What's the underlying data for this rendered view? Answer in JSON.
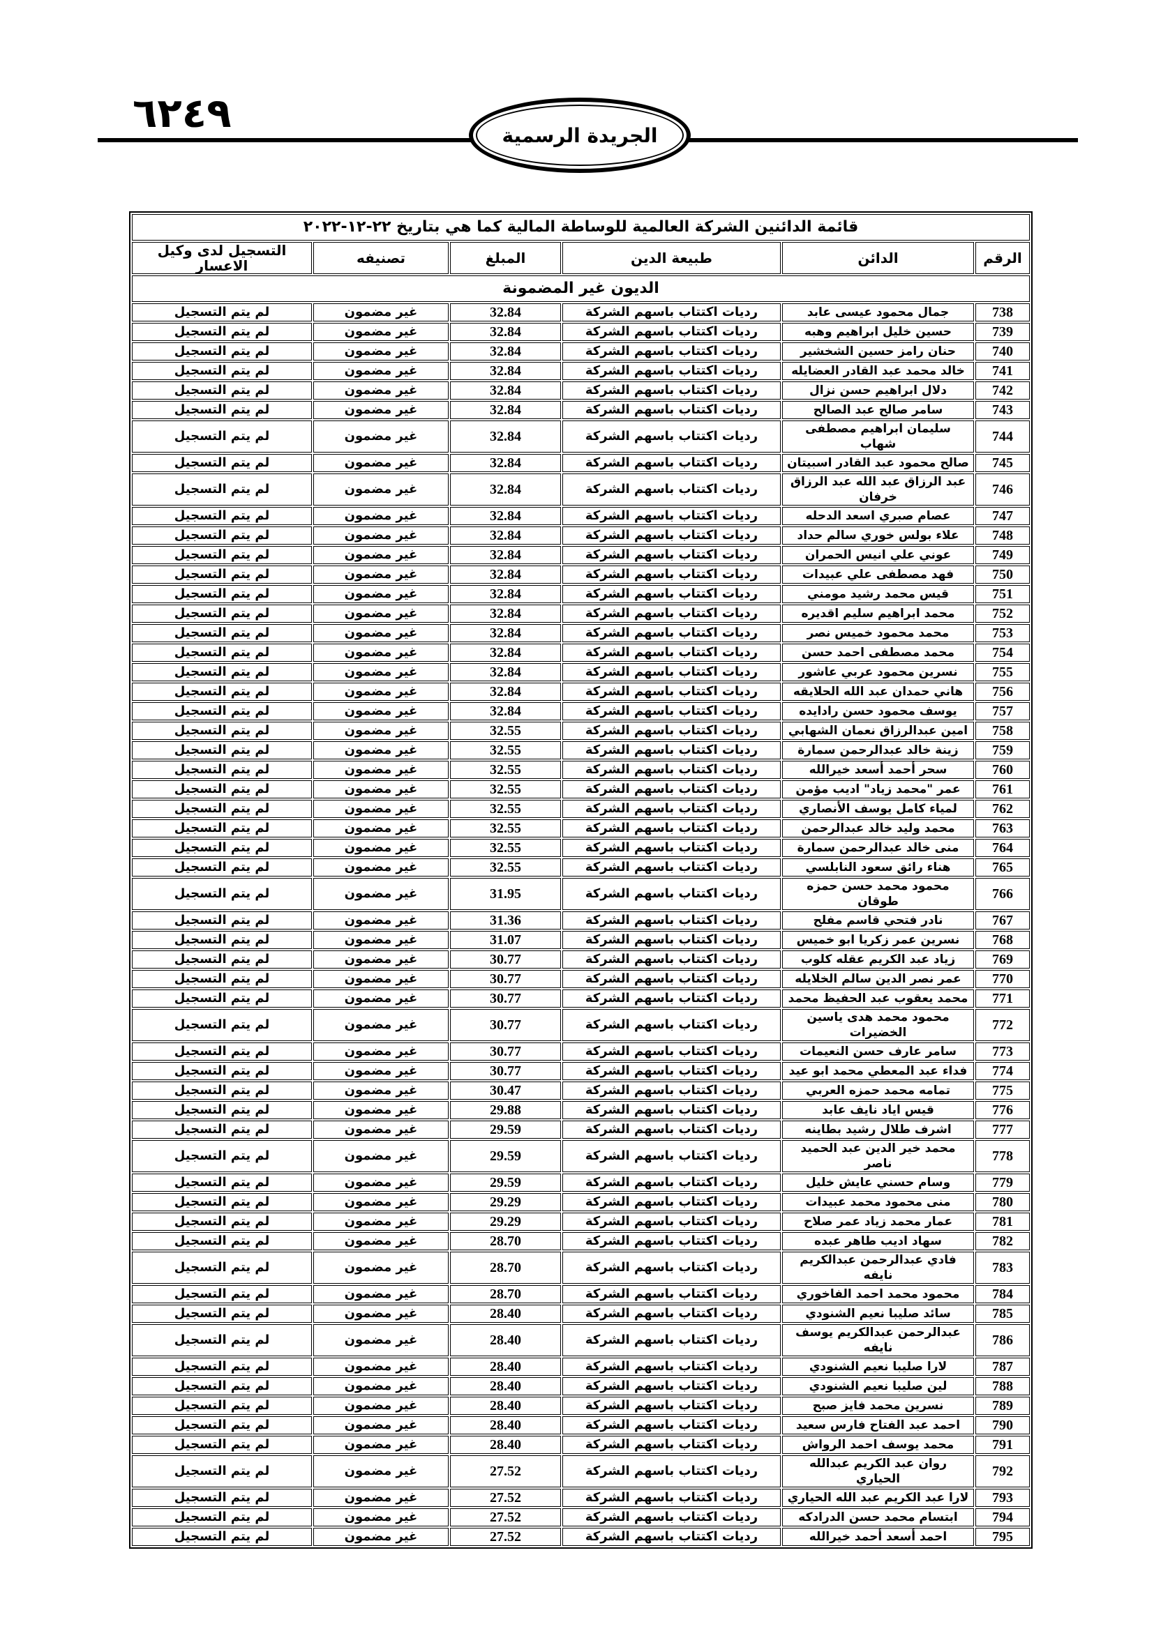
{
  "header": {
    "page_number": "٦٢٤٩",
    "gazette_title": "الجريدة الرسمية"
  },
  "table": {
    "title": "قائمة الدائنين الشركة العالمية للوساطة المالية  كما هي بتاريخ ٢٢-١٢-٢٠٢٢",
    "columns": [
      "الرقم",
      "الدائن",
      "طبيعة الدين",
      "المبلغ",
      "تصنيفه",
      "التسجيل لدى وكيل الاعسار"
    ],
    "section": "الديون غير المضمونة",
    "rows": [
      [
        "738",
        "جمال محمود عيسى عابد",
        "رديات اكتتاب باسهم الشركة",
        "32.84",
        "غير مضمون",
        "لم يتم التسجيل"
      ],
      [
        "739",
        "حسين خليل ابراهيم وهبه",
        "رديات اكتتاب باسهم الشركة",
        "32.84",
        "غير مضمون",
        "لم يتم التسجيل"
      ],
      [
        "740",
        "حنان رامز حسين الشخشير",
        "رديات اكتتاب باسهم الشركة",
        "32.84",
        "غير مضمون",
        "لم يتم التسجيل"
      ],
      [
        "741",
        "خالد محمد عبد القادر العضايله",
        "رديات اكتتاب باسهم الشركة",
        "32.84",
        "غير مضمون",
        "لم يتم التسجيل"
      ],
      [
        "742",
        "دلال ابراهيم حسن نزال",
        "رديات اكتتاب باسهم الشركة",
        "32.84",
        "غير مضمون",
        "لم يتم التسجيل"
      ],
      [
        "743",
        "سامر صالح عبد الصالح",
        "رديات اكتتاب باسهم الشركة",
        "32.84",
        "غير مضمون",
        "لم يتم التسجيل"
      ],
      [
        "744",
        "سليمان ابراهيم مصطفى شهاب",
        "رديات اكتتاب باسهم الشركة",
        "32.84",
        "غير مضمون",
        "لم يتم التسجيل"
      ],
      [
        "745",
        "صالح محمود عبد القادر اسبيتان",
        "رديات اكتتاب باسهم الشركة",
        "32.84",
        "غير مضمون",
        "لم يتم التسجيل"
      ],
      [
        "746",
        "عبد الرزاق عبد الله عبد الرزاق خرفان",
        "رديات اكتتاب باسهم الشركة",
        "32.84",
        "غير مضمون",
        "لم يتم التسجيل"
      ],
      [
        "747",
        "عصام صبري اسعد الدحله",
        "رديات اكتتاب باسهم الشركة",
        "32.84",
        "غير مضمون",
        "لم يتم التسجيل"
      ],
      [
        "748",
        "علاء بولس خوري سالم حداد",
        "رديات اكتتاب باسهم الشركة",
        "32.84",
        "غير مضمون",
        "لم يتم التسجيل"
      ],
      [
        "749",
        "عوني علي انيس الحمران",
        "رديات اكتتاب باسهم الشركة",
        "32.84",
        "غير مضمون",
        "لم يتم التسجيل"
      ],
      [
        "750",
        "فهد مصطفى علي عبيدات",
        "رديات اكتتاب باسهم الشركة",
        "32.84",
        "غير مضمون",
        "لم يتم التسجيل"
      ],
      [
        "751",
        "قيس محمد رشيد مومني",
        "رديات اكتتاب باسهم الشركة",
        "32.84",
        "غير مضمون",
        "لم يتم التسجيل"
      ],
      [
        "752",
        "محمد ابراهيم سليم اقديره",
        "رديات اكتتاب باسهم الشركة",
        "32.84",
        "غير مضمون",
        "لم يتم التسجيل"
      ],
      [
        "753",
        "محمد محمود خميس نصر",
        "رديات اكتتاب باسهم الشركة",
        "32.84",
        "غير مضمون",
        "لم يتم التسجيل"
      ],
      [
        "754",
        "محمد مصطفى احمد حسن",
        "رديات اكتتاب باسهم الشركة",
        "32.84",
        "غير مضمون",
        "لم يتم التسجيل"
      ],
      [
        "755",
        "نسرين محمود عربي عاشور",
        "رديات اكتتاب باسهم الشركة",
        "32.84",
        "غير مضمون",
        "لم يتم التسجيل"
      ],
      [
        "756",
        "هاني حمدان عبد الله الحلايقه",
        "رديات اكتتاب باسهم الشركة",
        "32.84",
        "غير مضمون",
        "لم يتم التسجيل"
      ],
      [
        "757",
        "يوسف محمود حسن رادايده",
        "رديات اكتتاب باسهم الشركة",
        "32.84",
        "غير مضمون",
        "لم يتم التسجيل"
      ],
      [
        "758",
        "امين عبدالرزاق نعمان الشهابي",
        "رديات اكتتاب باسهم الشركة",
        "32.55",
        "غير مضمون",
        "لم يتم التسجيل"
      ],
      [
        "759",
        "زينة خالد عبدالرحمن سمارة",
        "رديات اكتتاب باسهم الشركة",
        "32.55",
        "غير مضمون",
        "لم يتم التسجيل"
      ],
      [
        "760",
        "سحر أحمد أسعد خيرالله",
        "رديات اكتتاب باسهم الشركة",
        "32.55",
        "غير مضمون",
        "لم يتم التسجيل"
      ],
      [
        "761",
        "عمر \"محمد زياد\" اديب مؤمن",
        "رديات اكتتاب باسهم الشركة",
        "32.55",
        "غير مضمون",
        "لم يتم التسجيل"
      ],
      [
        "762",
        "لمياء كامل يوسف الأنصاري",
        "رديات اكتتاب باسهم الشركة",
        "32.55",
        "غير مضمون",
        "لم يتم التسجيل"
      ],
      [
        "763",
        "محمد وليد خالد عبدالرحمن",
        "رديات اكتتاب باسهم الشركة",
        "32.55",
        "غير مضمون",
        "لم يتم التسجيل"
      ],
      [
        "764",
        "منى خالد عبدالرحمن سمارة",
        "رديات اكتتاب باسهم الشركة",
        "32.55",
        "غير مضمون",
        "لم يتم التسجيل"
      ],
      [
        "765",
        "هناء رائق سعود النابلسي",
        "رديات اكتتاب باسهم الشركة",
        "32.55",
        "غير مضمون",
        "لم يتم التسجيل"
      ],
      [
        "766",
        "محمود محمد حسن حمزه طوقان",
        "رديات اكتتاب باسهم الشركة",
        "31.95",
        "غير مضمون",
        "لم يتم التسجيل"
      ],
      [
        "767",
        "نادر فتحي قاسم مفلح",
        "رديات اكتتاب باسهم الشركة",
        "31.36",
        "غير مضمون",
        "لم يتم التسجيل"
      ],
      [
        "768",
        "نسرين عمر زكريا ابو خميس",
        "رديات اكتتاب باسهم الشركة",
        "31.07",
        "غير مضمون",
        "لم يتم التسجيل"
      ],
      [
        "769",
        "زياد عبد الكريم عقله كلوب",
        "رديات اكتتاب باسهم الشركة",
        "30.77",
        "غير مضمون",
        "لم يتم التسجيل"
      ],
      [
        "770",
        "عمر نصر الدين سالم الخلايله",
        "رديات اكتتاب باسهم الشركة",
        "30.77",
        "غير مضمون",
        "لم يتم التسجيل"
      ],
      [
        "771",
        "محمد يعقوب عبد الحفيظ محمد",
        "رديات اكتتاب باسهم الشركة",
        "30.77",
        "غير مضمون",
        "لم يتم التسجيل"
      ],
      [
        "772",
        "محمود محمد هدى ياسين الخضيرات",
        "رديات اكتتاب باسهم الشركة",
        "30.77",
        "غير مضمون",
        "لم يتم التسجيل"
      ],
      [
        "773",
        "سامر عارف حسن النعيمات",
        "رديات اكتتاب باسهم الشركة",
        "30.77",
        "غير مضمون",
        "لم يتم التسجيل"
      ],
      [
        "774",
        "فداء عبد المعطي محمد ابو عيد",
        "رديات اكتتاب باسهم الشركة",
        "30.77",
        "غير مضمون",
        "لم يتم التسجيل"
      ],
      [
        "775",
        "تمامه محمد حمزه العربي",
        "رديات اكتتاب باسهم الشركة",
        "30.47",
        "غير مضمون",
        "لم يتم التسجيل"
      ],
      [
        "776",
        "قيس اياد نايف عابد",
        "رديات اكتتاب باسهم الشركة",
        "29.88",
        "غير مضمون",
        "لم يتم التسجيل"
      ],
      [
        "777",
        "اشرف طلال رشيد بطاينه",
        "رديات اكتتاب باسهم الشركة",
        "29.59",
        "غير مضمون",
        "لم يتم التسجيل"
      ],
      [
        "778",
        "محمد خير الدين عبد الحميد ناصر",
        "رديات اكتتاب باسهم الشركة",
        "29.59",
        "غير مضمون",
        "لم يتم التسجيل"
      ],
      [
        "779",
        "وسام حسني عايش خليل",
        "رديات اكتتاب باسهم الشركة",
        "29.59",
        "غير مضمون",
        "لم يتم التسجيل"
      ],
      [
        "780",
        "منى محمود محمد عبيدات",
        "رديات اكتتاب باسهم الشركة",
        "29.29",
        "غير مضمون",
        "لم يتم التسجيل"
      ],
      [
        "781",
        "عمار محمد زياد عمر صلاح",
        "رديات اكتتاب باسهم الشركة",
        "29.29",
        "غير مضمون",
        "لم يتم التسجيل"
      ],
      [
        "782",
        "سهاد اديب طاهر عبده",
        "رديات اكتتاب باسهم الشركة",
        "28.70",
        "غير مضمون",
        "لم يتم التسجيل"
      ],
      [
        "783",
        "فادي عبدالرحمن عبدالكريم نايفه",
        "رديات اكتتاب باسهم الشركة",
        "28.70",
        "غير مضمون",
        "لم يتم التسجيل"
      ],
      [
        "784",
        "محمود محمد احمد الفاخوري",
        "رديات اكتتاب باسهم الشركة",
        "28.70",
        "غير مضمون",
        "لم يتم التسجيل"
      ],
      [
        "785",
        "سائد صليبا نعيم الشنودي",
        "رديات اكتتاب باسهم الشركة",
        "28.40",
        "غير مضمون",
        "لم يتم التسجيل"
      ],
      [
        "786",
        "عبدالرحمن عبدالكريم يوسف نايفه",
        "رديات اكتتاب باسهم الشركة",
        "28.40",
        "غير مضمون",
        "لم يتم التسجيل"
      ],
      [
        "787",
        "لارا صليبا نعيم الشنودي",
        "رديات اكتتاب باسهم الشركة",
        "28.40",
        "غير مضمون",
        "لم يتم التسجيل"
      ],
      [
        "788",
        "لين صليبا نعيم الشنودي",
        "رديات اكتتاب باسهم الشركة",
        "28.40",
        "غير مضمون",
        "لم يتم التسجيل"
      ],
      [
        "789",
        "نسرين محمد فايز صبح",
        "رديات اكتتاب باسهم الشركة",
        "28.40",
        "غير مضمون",
        "لم يتم التسجيل"
      ],
      [
        "790",
        "احمد عبد الفتاح فارس سعيد",
        "رديات اكتتاب باسهم الشركة",
        "28.40",
        "غير مضمون",
        "لم يتم التسجيل"
      ],
      [
        "791",
        "محمد يوسف احمد الرواش",
        "رديات اكتتاب باسهم الشركة",
        "28.40",
        "غير مضمون",
        "لم يتم التسجيل"
      ],
      [
        "792",
        "روان عبد الكريم عبدالله الحياري",
        "رديات اكتتاب باسهم الشركة",
        "27.52",
        "غير مضمون",
        "لم يتم التسجيل"
      ],
      [
        "793",
        "لارا عبد الكريم عبد الله الحياري",
        "رديات اكتتاب باسهم الشركة",
        "27.52",
        "غير مضمون",
        "لم يتم التسجيل"
      ],
      [
        "794",
        "ابتسام محمد حسن الدرادكه",
        "رديات اكتتاب باسهم الشركة",
        "27.52",
        "غير مضمون",
        "لم يتم التسجيل"
      ],
      [
        "795",
        "احمد أسعد أحمد خيرالله",
        "رديات اكتتاب باسهم الشركة",
        "27.52",
        "غير مضمون",
        "لم يتم التسجيل"
      ]
    ]
  }
}
